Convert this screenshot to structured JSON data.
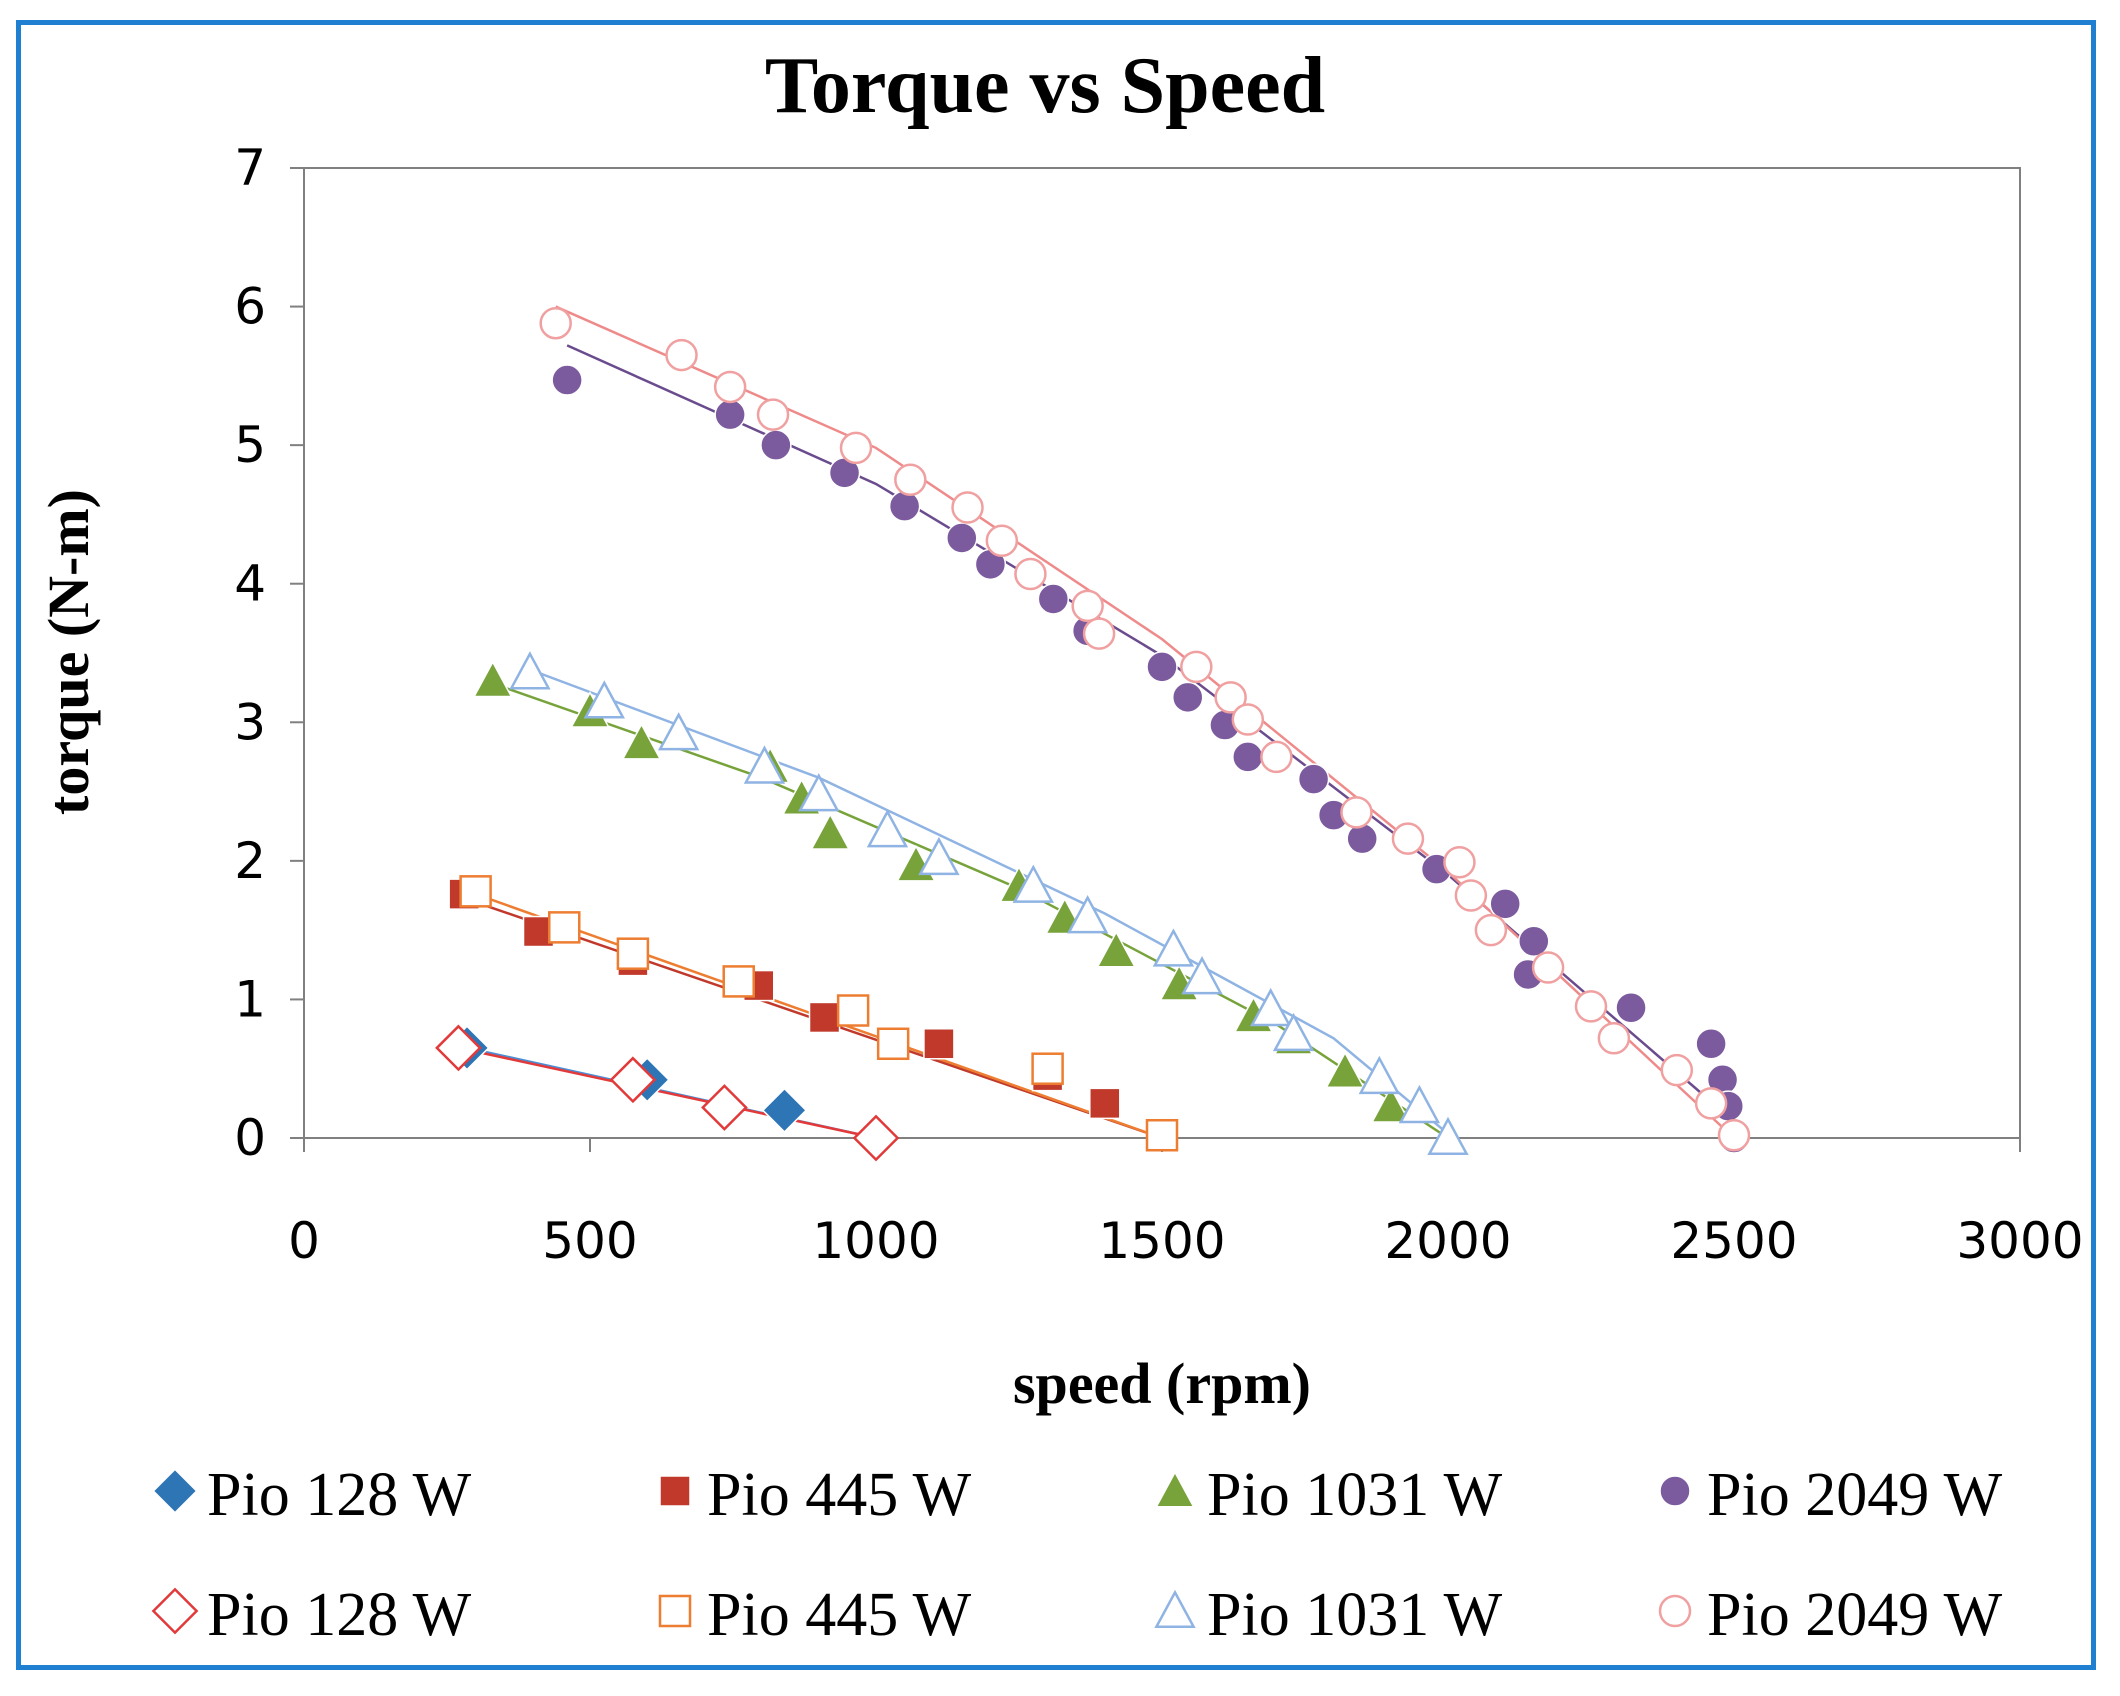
{
  "chart_data": {
    "type": "scatter",
    "title": "Torque vs Speed",
    "xlabel": "speed (rpm)",
    "ylabel": "torque (N-m)",
    "xlim": [
      0,
      3000
    ],
    "ylim": [
      0,
      7
    ],
    "xticks": [
      "0",
      "500",
      "1000",
      "1500",
      "2000",
      "2500",
      "3000"
    ],
    "yticks": [
      "0",
      "1",
      "2",
      "3",
      "4",
      "5",
      "6",
      "7"
    ],
    "grid": false,
    "legend_position": "bottom",
    "series": [
      {
        "name": "Pio 128 W",
        "marker": "diamond",
        "filled": true,
        "color": "#2e75b6",
        "line_color": "#4a8fd6",
        "x": [
          285,
          600,
          840,
          1000
        ],
        "y": [
          0.65,
          0.42,
          0.2,
          0.0
        ],
        "trend_x": [
          285,
          1000
        ],
        "trend_y": [
          0.65,
          0.0
        ]
      },
      {
        "name": "Pio 445 W",
        "marker": "square",
        "filled": true,
        "color": "#c0392b",
        "line_color": "#c0392b",
        "x": [
          280,
          410,
          575,
          795,
          910,
          1110,
          1300,
          1400,
          1500
        ],
        "y": [
          1.76,
          1.49,
          1.28,
          1.1,
          0.87,
          0.68,
          0.45,
          0.25,
          0.02
        ],
        "trend_x": [
          280,
          1500
        ],
        "trend_y": [
          1.73,
          0.0
        ]
      },
      {
        "name": "Pio 1031 W",
        "marker": "triangle",
        "filled": true,
        "color": "#77a33a",
        "line_color": "#77a33a",
        "x": [
          330,
          500,
          590,
          815,
          870,
          920,
          1070,
          1250,
          1330,
          1420,
          1530,
          1660,
          1730,
          1820,
          1900,
          2000
        ],
        "y": [
          3.3,
          3.08,
          2.85,
          2.68,
          2.45,
          2.2,
          1.97,
          1.82,
          1.59,
          1.35,
          1.11,
          0.88,
          0.72,
          0.48,
          0.23,
          0.0
        ],
        "trend_x": [
          330,
          800,
          1250,
          1700,
          2000
        ],
        "trend_y": [
          3.28,
          2.6,
          1.8,
          0.82,
          0.0
        ]
      },
      {
        "name": "Pio 2049 W",
        "marker": "circle",
        "filled": true,
        "color": "#7b5a9e",
        "line_color": "#6a4c8e",
        "x": [
          460,
          745,
          825,
          945,
          1050,
          1150,
          1200,
          1310,
          1370,
          1500,
          1545,
          1610,
          1650,
          1765,
          1800,
          1850,
          1980,
          2100,
          2150,
          2140,
          2320,
          2460,
          2480,
          2490,
          2500
        ],
        "y": [
          5.47,
          5.22,
          5.0,
          4.8,
          4.56,
          4.33,
          4.14,
          3.89,
          3.66,
          3.4,
          3.18,
          2.98,
          2.75,
          2.59,
          2.33,
          2.16,
          1.94,
          1.69,
          1.42,
          1.18,
          0.94,
          0.68,
          0.42,
          0.23,
          0.0
        ],
        "trend_x": [
          460,
          1000,
          1500,
          2000,
          2500
        ],
        "trend_y": [
          5.72,
          4.72,
          3.48,
          1.9,
          0.12
        ]
      },
      {
        "name": "Pio 128 W",
        "marker": "diamond",
        "filled": false,
        "color": "#e23a3a",
        "line_color": "#e23a3a",
        "x": [
          270,
          575,
          735,
          1000
        ],
        "y": [
          0.65,
          0.42,
          0.22,
          0.0
        ],
        "trend_x": [
          270,
          1000
        ],
        "trend_y": [
          0.65,
          0.0
        ]
      },
      {
        "name": "Pio 445 W",
        "marker": "square",
        "filled": false,
        "color": "#ed7d31",
        "line_color": "#ed7d31",
        "x": [
          300,
          455,
          575,
          760,
          960,
          1030,
          1300,
          1500
        ],
        "y": [
          1.78,
          1.52,
          1.33,
          1.13,
          0.92,
          0.68,
          0.5,
          0.02
        ],
        "trend_x": [
          300,
          1500
        ],
        "trend_y": [
          1.76,
          0.0
        ]
      },
      {
        "name": "Pio 1031 W",
        "marker": "triangle",
        "filled": false,
        "color": "#8fb4e3",
        "line_color": "#8fb4e3",
        "x": [
          395,
          525,
          655,
          805,
          900,
          1020,
          1110,
          1275,
          1370,
          1520,
          1570,
          1690,
          1730,
          1880,
          1950,
          2000
        ],
        "y": [
          3.36,
          3.15,
          2.92,
          2.68,
          2.48,
          2.22,
          2.02,
          1.82,
          1.6,
          1.36,
          1.16,
          0.93,
          0.75,
          0.44,
          0.23,
          0.0
        ],
        "trend_x": [
          395,
          900,
          1400,
          1800,
          2000
        ],
        "trend_y": [
          3.38,
          2.6,
          1.62,
          0.72,
          0.03
        ]
      },
      {
        "name": "Pio 2049 W",
        "marker": "circle",
        "filled": false,
        "color": "#f0a0a0",
        "line_color": "#ef8a8a",
        "x": [
          440,
          660,
          745,
          820,
          965,
          1060,
          1160,
          1220,
          1270,
          1370,
          1390,
          1560,
          1620,
          1650,
          1700,
          1840,
          1930,
          2020,
          2040,
          2075,
          2175,
          2250,
          2290,
          2400,
          2460,
          2500
        ],
        "y": [
          5.88,
          5.65,
          5.42,
          5.22,
          4.98,
          4.75,
          4.55,
          4.31,
          4.07,
          3.84,
          3.64,
          3.4,
          3.18,
          3.02,
          2.75,
          2.35,
          2.16,
          1.99,
          1.75,
          1.5,
          1.23,
          0.95,
          0.72,
          0.49,
          0.25,
          0.02
        ],
        "trend_x": [
          440,
          1000,
          1500,
          2000,
          2500
        ],
        "trend_y": [
          6.0,
          4.98,
          3.6,
          1.92,
          0.0
        ]
      }
    ]
  }
}
